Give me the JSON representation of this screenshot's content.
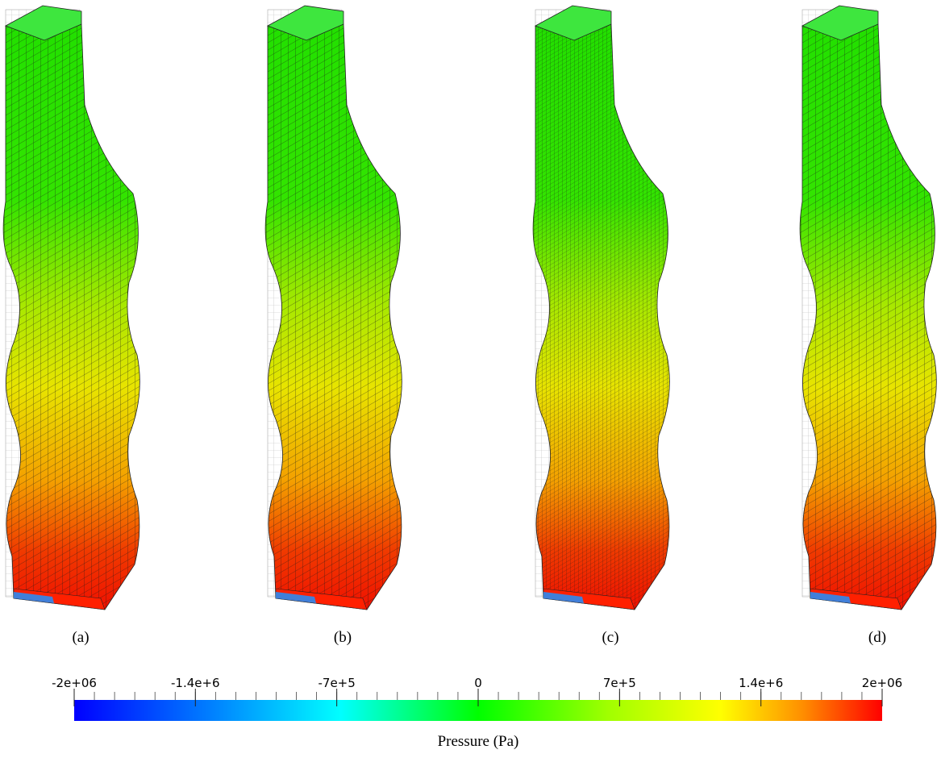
{
  "panels": [
    {
      "caption": "(a)"
    },
    {
      "caption": "(b)"
    },
    {
      "caption": "(c)"
    },
    {
      "caption": "(d)"
    }
  ],
  "colorbar": {
    "title": "Pressure (Pa)",
    "range": [
      -2000000,
      2000000
    ],
    "ticks": [
      {
        "value": -2000000,
        "label": "-2e+06"
      },
      {
        "value": -1400000,
        "label": "-1.4e+6"
      },
      {
        "value": -700000,
        "label": "-7e+5"
      },
      0,
      {
        "value": 700000,
        "label": "7e+5"
      },
      {
        "value": 1400000,
        "label": "1.4e+6"
      },
      {
        "value": 2000000,
        "label": "2e+06"
      }
    ]
  }
}
